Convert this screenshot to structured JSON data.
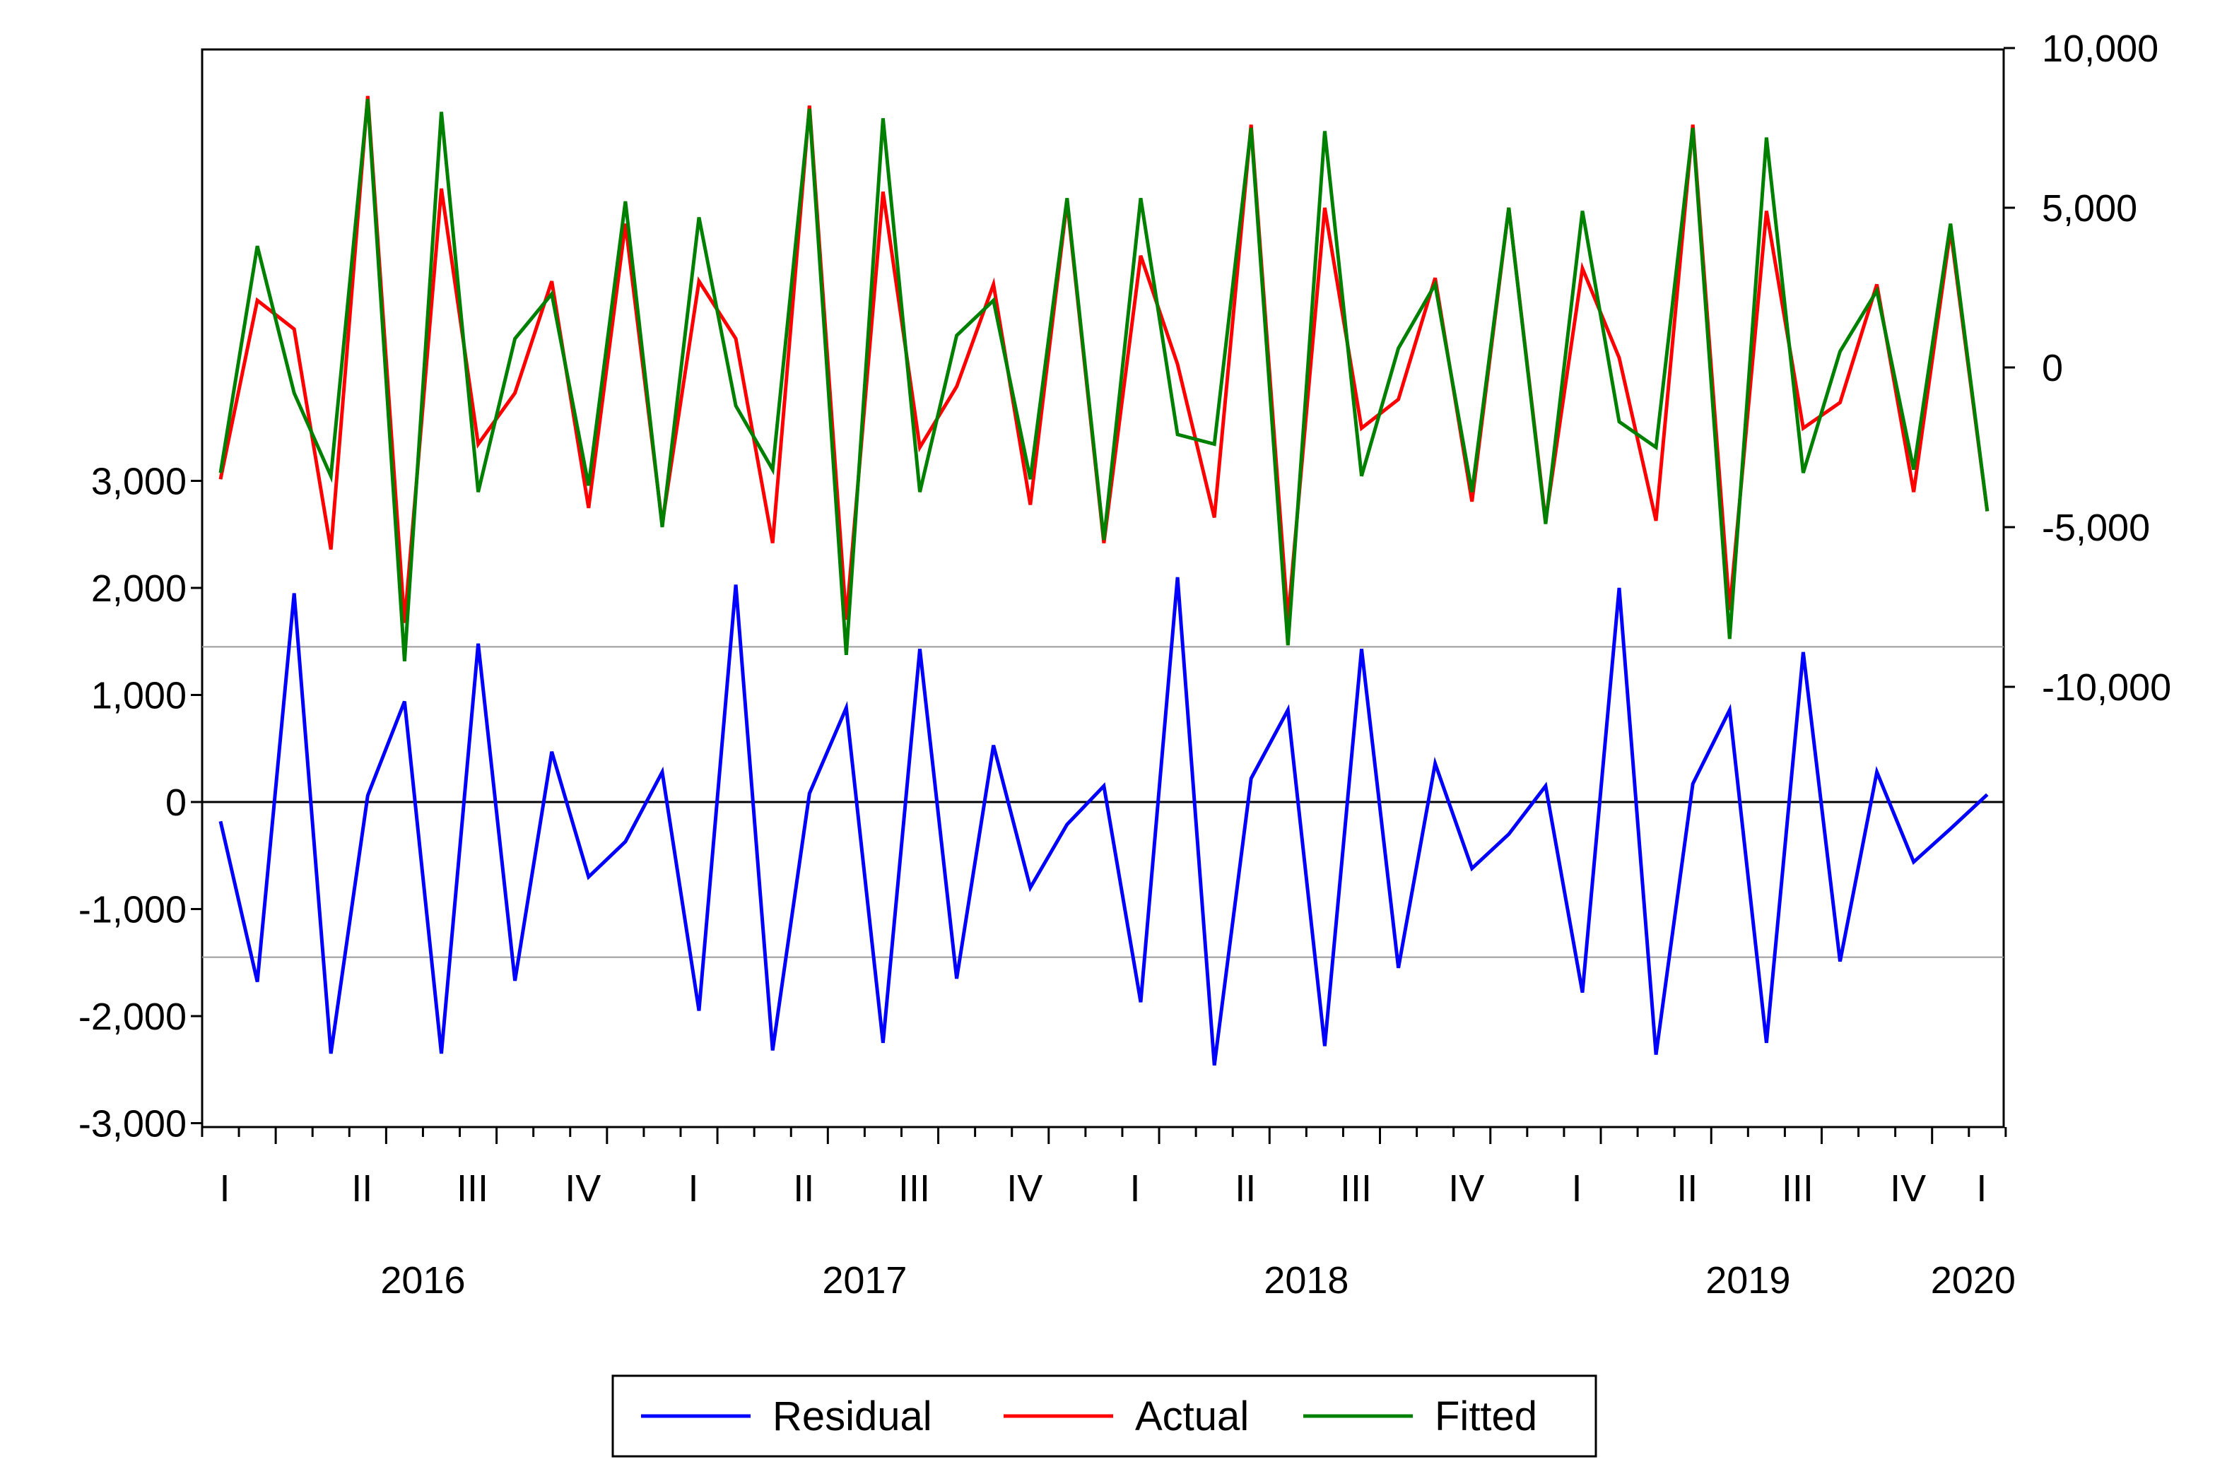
{
  "chart_data": {
    "type": "line",
    "title": "",
    "x_categories": {
      "quarter_labels": [
        "I",
        "II",
        "III",
        "IV",
        "I",
        "II",
        "III",
        "IV",
        "I",
        "II",
        "III",
        "IV",
        "I",
        "II",
        "III",
        "IV",
        "I"
      ],
      "year_labels": [
        "2016",
        "2017",
        "2018",
        "2019",
        "2020"
      ]
    },
    "left_axis": {
      "ylim": [
        -3000,
        3000
      ],
      "ticks": [
        -3000,
        -2000,
        -1000,
        0,
        1000,
        2000,
        3000
      ],
      "tick_labels": [
        "-3,000",
        "-2,000",
        "-1,000",
        "0",
        "1,000",
        "2,000",
        "3,000"
      ]
    },
    "right_axis": {
      "ylim": [
        -20000,
        10000
      ],
      "ticks": [
        -10000,
        -5000,
        0,
        5000,
        10000
      ],
      "tick_labels": [
        "-10,000",
        "-5,000",
        "0",
        "5,000",
        "10,000"
      ]
    },
    "reference_lines": {
      "zero": 0,
      "dashed": [
        1450,
        -1450
      ]
    },
    "series": [
      {
        "name": "Residual",
        "axis": "left",
        "color": "#0000ff",
        "values": [
          -180,
          -1680,
          1950,
          -2350,
          60,
          940,
          -2350,
          1480,
          -1670,
          470,
          -700,
          -370,
          280,
          -1950,
          2030,
          -2320,
          80,
          880,
          -2250,
          1430,
          -1650,
          530,
          -800,
          -210,
          150,
          -1870,
          2100,
          -2460,
          220,
          860,
          -2280,
          1430,
          -1550,
          360,
          -620,
          -300,
          150,
          -1780,
          2000,
          -2360,
          170,
          860,
          -2250,
          1400,
          -1490,
          280,
          -560,
          -250,
          70
        ]
      },
      {
        "name": "Actual",
        "axis": "right",
        "color": "#ff0000",
        "values": [
          -3500,
          2100,
          1200,
          -5700,
          8500,
          -8000,
          5600,
          -2400,
          -800,
          2700,
          -4400,
          4500,
          -4900,
          2700,
          900,
          -5500,
          8200,
          -7900,
          5500,
          -2500,
          -600,
          2600,
          -4300,
          5200,
          -5500,
          3500,
          100,
          -4700,
          7600,
          -7900,
          5000,
          -1900,
          -1000,
          2800,
          -4200,
          5000,
          -4800,
          3100,
          300,
          -4800,
          7600,
          -7600,
          4900,
          -1900,
          -1100,
          2600,
          -3900,
          4300,
          -4500
        ]
      },
      {
        "name": "Fitted",
        "axis": "right",
        "color": "#008000",
        "values": [
          -3300,
          3800,
          -800,
          -3400,
          8400,
          -9200,
          8000,
          -3900,
          900,
          2300,
          -3700,
          5200,
          -5000,
          4700,
          -1200,
          -3200,
          8100,
          -9000,
          7800,
          -3900,
          1000,
          2100,
          -3500,
          5300,
          -5400,
          5300,
          -2100,
          -2400,
          7500,
          -8700,
          7400,
          -3400,
          600,
          2600,
          -3900,
          5000,
          -4900,
          4900,
          -1700,
          -2500,
          7500,
          -8500,
          7200,
          -3300,
          500,
          2400,
          -3200,
          4500,
          -4500
        ]
      }
    ],
    "legend": {
      "position": "bottom-center",
      "entries": [
        "Residual",
        "Actual",
        "Fitted"
      ]
    }
  }
}
